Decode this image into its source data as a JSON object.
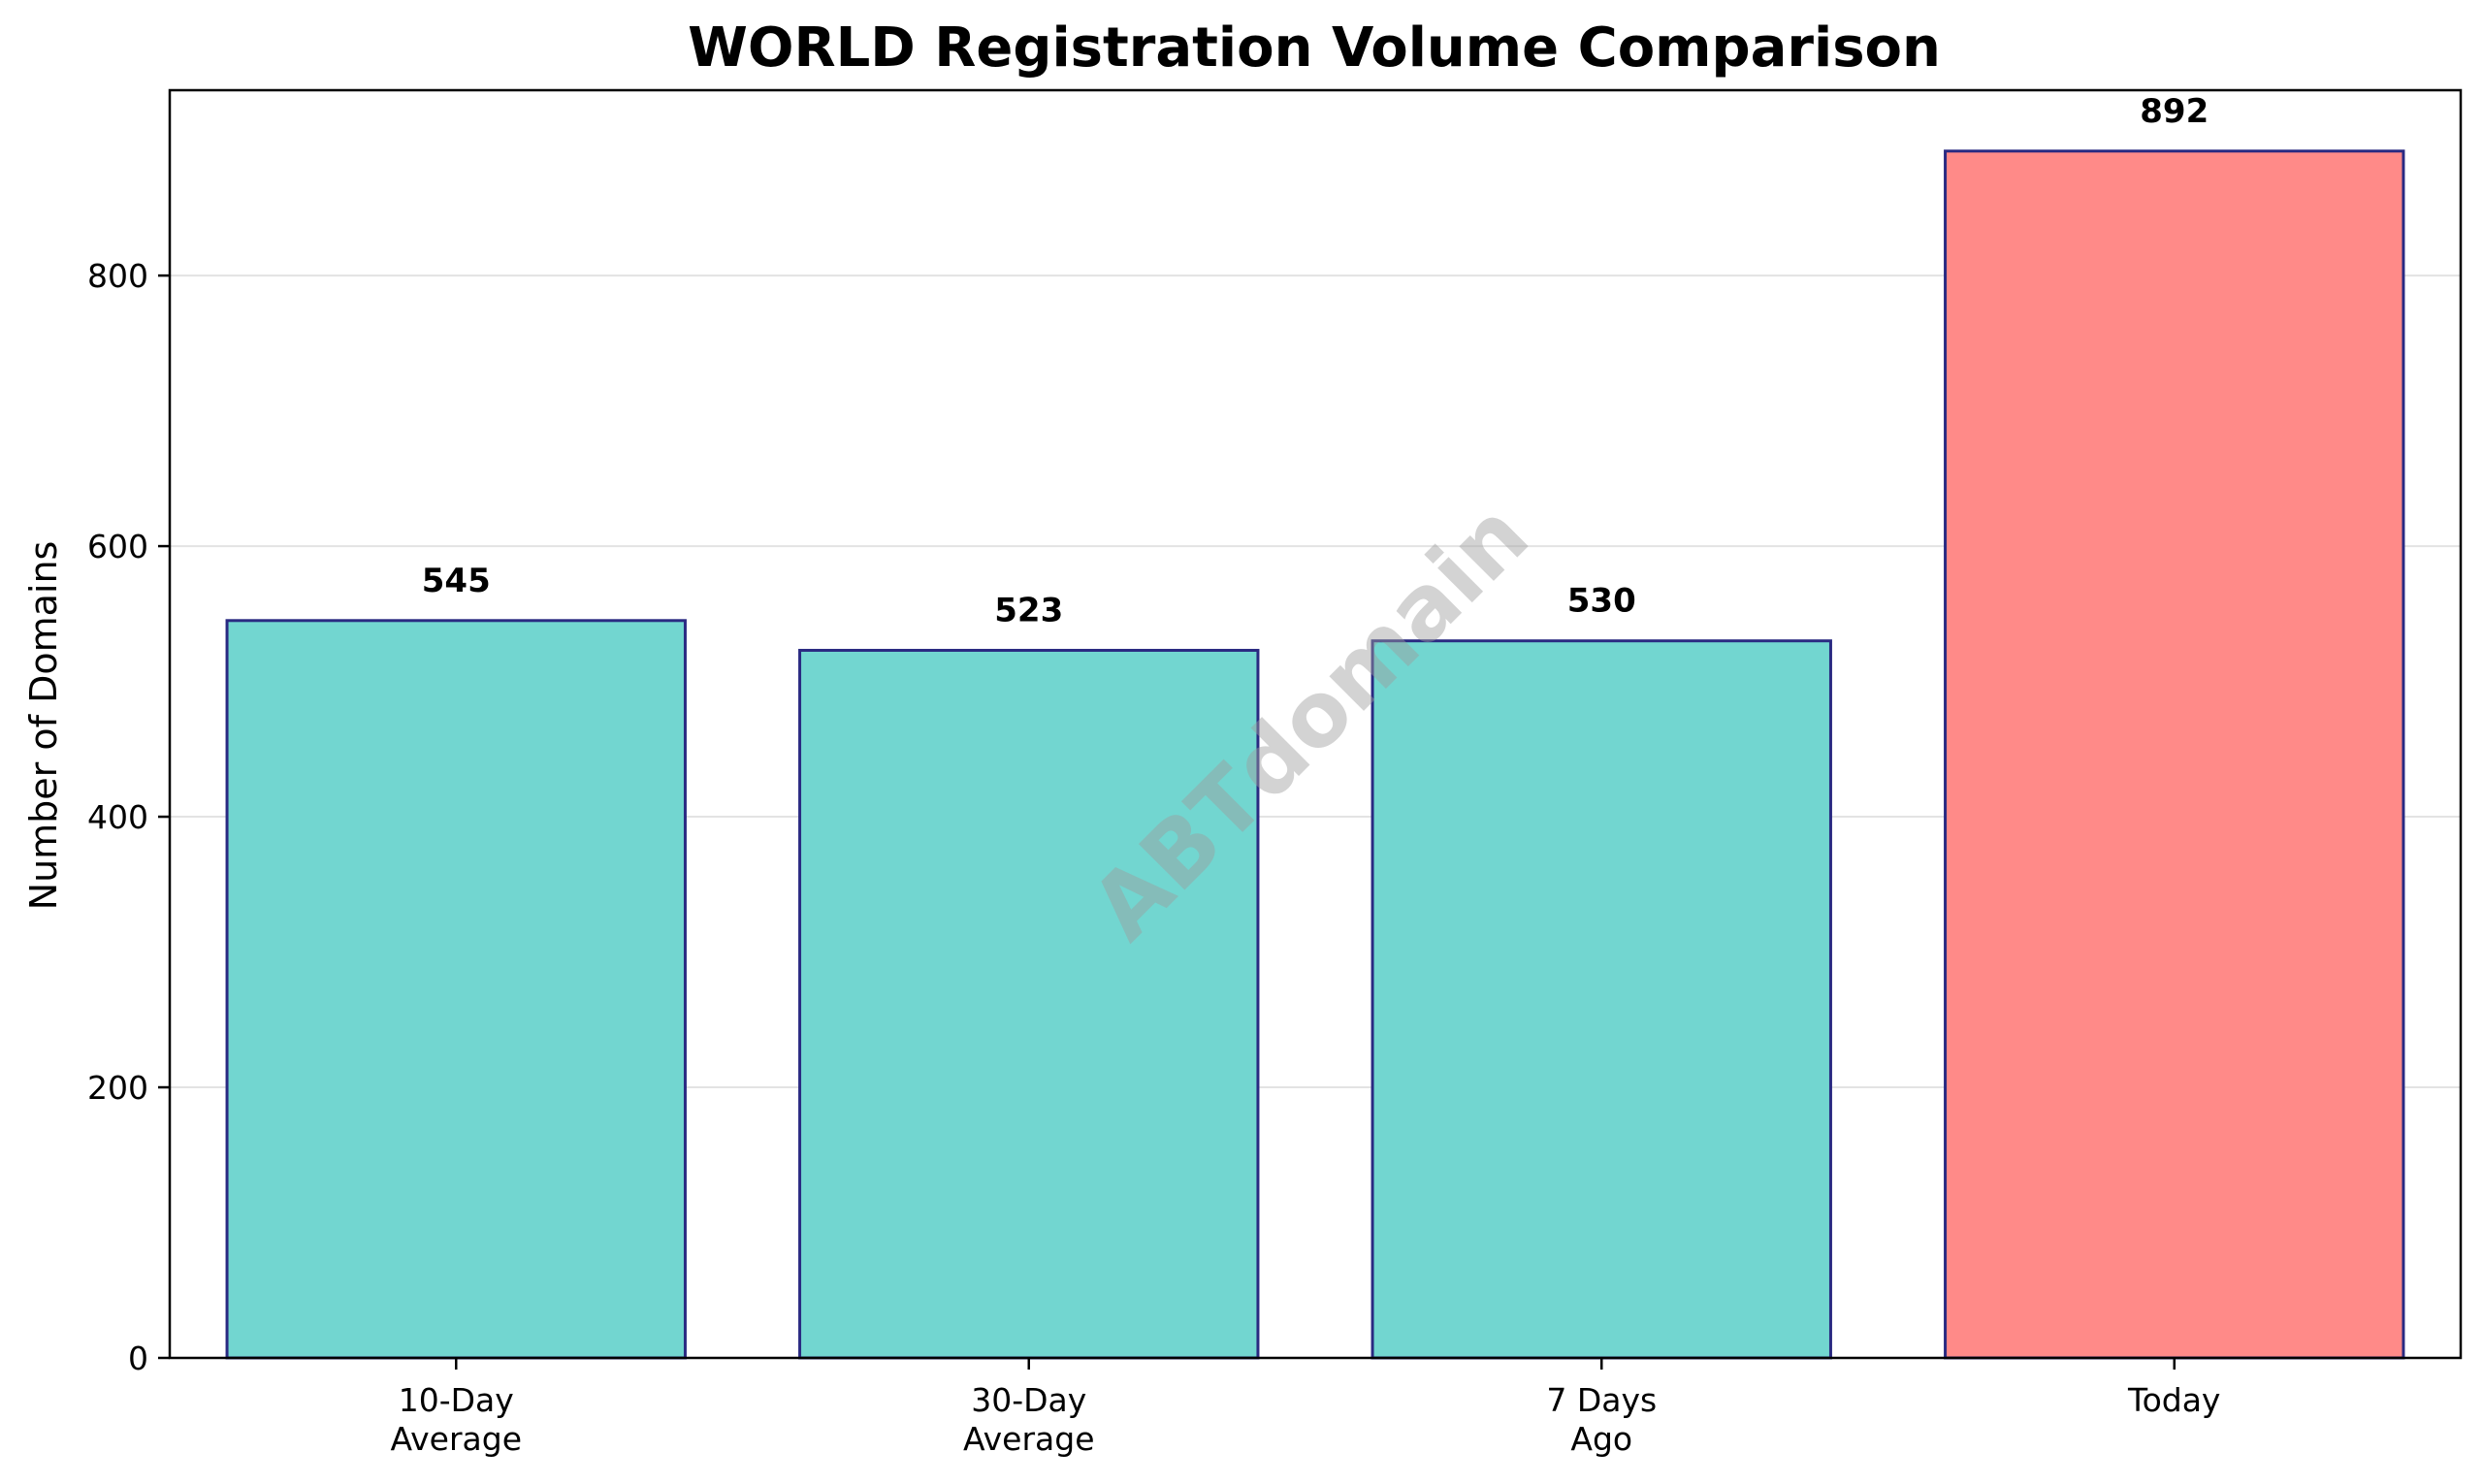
{
  "chart_data": {
    "type": "bar",
    "title": "WORLD Registration Volume Comparison",
    "xlabel": "",
    "ylabel": "Number of Domains",
    "categories": [
      "10-Day\nAverage",
      "30-Day\nAverage",
      "7 Days\nAgo",
      "Today"
    ],
    "values": [
      545,
      523,
      530,
      892
    ],
    "data_labels": [
      "545",
      "523",
      "530",
      "892"
    ],
    "bar_colors": [
      "#72d6d0",
      "#72d6d0",
      "#72d6d0",
      "#ff8a88"
    ],
    "bar_edge_color": "#2a2a82",
    "ylim": [
      0,
      937
    ],
    "yticks": [
      0,
      200,
      400,
      600,
      800
    ],
    "grid": "horizontal",
    "legend": "none"
  },
  "watermark": "ABTdomain"
}
